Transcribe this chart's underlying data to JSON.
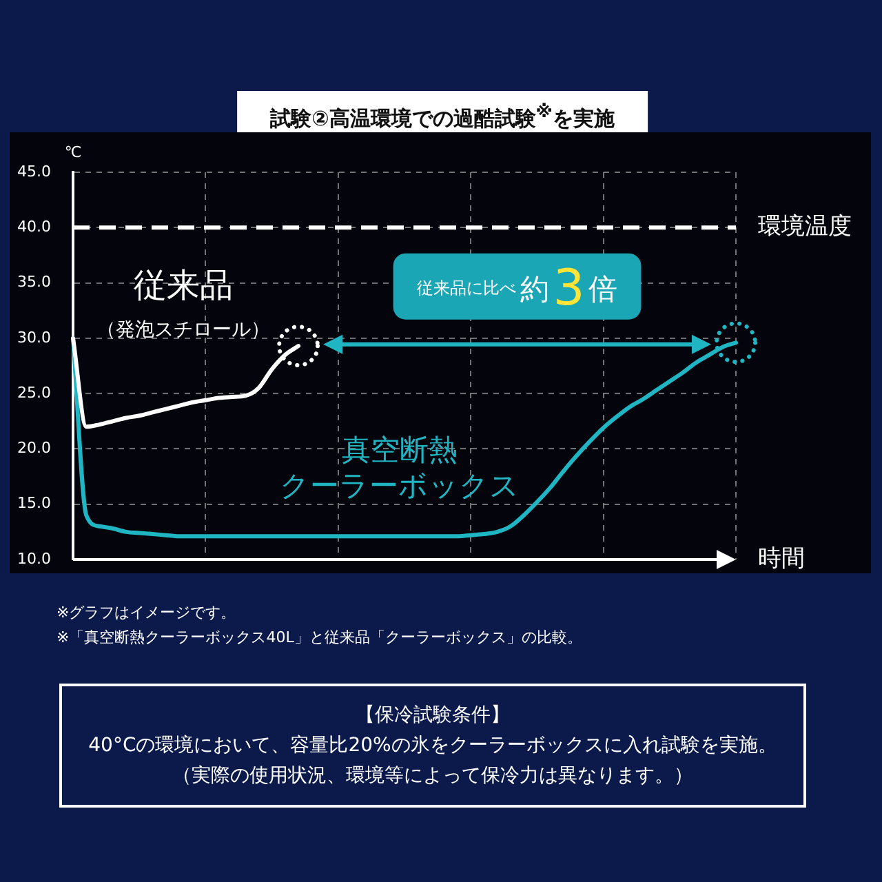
{
  "chart_data": {
    "type": "line",
    "title": "試験②高温環境での過酷試験$^{※}$を実施",
    "ylabel": "℃",
    "xlabel": "時間",
    "categories": [
      null,
      null,
      null,
      null,
      null,
      null,
      null,
      null,
      null,
      null,
      null,
      null,
      null,
      null,
      null,
      null,
      null,
      null,
      null,
      null,
      null,
      null,
      null,
      null,
      null,
      null,
      null,
      null,
      null,
      null,
      null,
      null,
      null,
      null,
      null,
      null,
      null,
      null,
      null,
      null,
      null,
      null,
      null,
      null,
      null,
      null,
      null,
      null,
      null,
      null,
      null
    ],
    "series": [
      {
        "name": "従来品（発泡スチロール）",
        "color": "#ffffff",
        "values": [
          30,
          22.0,
          22.2,
          22.5,
          22.8,
          23.0,
          23.3,
          23.6,
          23.9,
          24.2,
          24.4,
          24.6,
          24.7,
          24.8,
          25.5,
          27.2,
          28.5,
          29.3,
          null,
          null,
          null,
          null,
          null,
          null,
          null,
          null,
          null,
          null,
          null,
          null,
          null,
          null,
          null,
          null,
          null,
          null,
          null,
          null,
          null,
          null,
          null,
          null,
          null,
          null,
          null,
          null,
          null,
          null,
          null,
          null,
          null
        ]
      },
      {
        "name": "真空断熱クーラーボックス",
        "color": "#1fb5c2",
        "values": [
          30,
          14.0,
          13.0,
          12.8,
          12.5,
          12.4,
          12.3,
          12.2,
          12.1,
          12.1,
          12.1,
          12.1,
          12.1,
          12.1,
          12.1,
          12.1,
          12.1,
          12.1,
          12.1,
          12.1,
          12.1,
          12.1,
          12.1,
          12.1,
          12.1,
          12.1,
          12.1,
          12.1,
          12.1,
          12.1,
          12.2,
          12.3,
          12.5,
          13.0,
          14.0,
          15.2,
          16.5,
          18.0,
          19.4,
          20.7,
          21.9,
          22.9,
          23.8,
          24.5,
          25.3,
          26.1,
          26.9,
          27.8,
          28.5,
          29.2,
          29.6
        ]
      }
    ],
    "ylim": [
      10,
      45
    ],
    "yticks": [
      {
        "value": 10,
        "label": "10.0"
      },
      {
        "value": 15,
        "label": "15.0"
      },
      {
        "value": 20,
        "label": "20.0"
      },
      {
        "value": 25,
        "label": "25.0"
      },
      {
        "value": 30,
        "label": "30.0"
      },
      {
        "value": 35,
        "label": "35.0"
      },
      {
        "value": 40,
        "label": "40.0"
      },
      {
        "value": 45,
        "label": "45.0"
      }
    ],
    "ref_lines": [
      {
        "axis": "y",
        "value": 40,
        "label": "環境温度",
        "color": "#ffffff",
        "line_style": "dashed"
      }
    ],
    "grid": true,
    "tick_labels": "y",
    "annotations": [
      "従来品に比べ約3倍",
      "※グラフはイメージです。",
      "※「真空断熱クーラーボックス40L」と従来品「クーラーボックス」の比較。",
      "【保冷試験条件】",
      "40°Cの環境において、容量比20%の氷をクーラーボックスに入れ試験を実施。",
      "（実際の使用状況、環境等によって保冷力は異なります。）"
    ]
  }
}
